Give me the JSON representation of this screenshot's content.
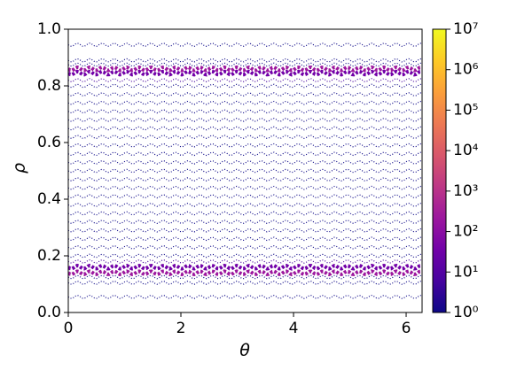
{
  "chart_data": {
    "type": "density",
    "xlabel": "θ",
    "ylabel": "ρ",
    "xlim": [
      0,
      6.283
    ],
    "ylim": [
      0,
      1
    ],
    "xticks": [
      0,
      2,
      4,
      6
    ],
    "yticks": [
      {
        "value": 0,
        "label": "0.0"
      },
      0.2,
      0.4,
      0.6,
      0.8,
      {
        "value": 1,
        "label": "1.0"
      }
    ],
    "rho": [
      0.055,
      0.105,
      0.125,
      0.14,
      0.16,
      0.18,
      0.2,
      0.23,
      0.26,
      0.29,
      0.32,
      0.35,
      0.38,
      0.41,
      0.44,
      0.47,
      0.5,
      0.53,
      0.56,
      0.59,
      0.62,
      0.65,
      0.68,
      0.71,
      0.74,
      0.77,
      0.8,
      0.82,
      0.845,
      0.86,
      0.875,
      0.89,
      0.945
    ],
    "counts": [
      1,
      1,
      2,
      100,
      30,
      3,
      2,
      2,
      2,
      2,
      2,
      2,
      2,
      2,
      2,
      2,
      1,
      2,
      2,
      2,
      2,
      2,
      2,
      2,
      2,
      2,
      2,
      3,
      30,
      100,
      2,
      1,
      1
    ],
    "colormap": "plasma",
    "color_scale": "log",
    "clim": [
      1,
      10000000
    ],
    "cticks": [
      {
        "value": 1,
        "label": "10⁰"
      },
      {
        "value": 10,
        "label": "10¹"
      },
      {
        "value": 100,
        "label": "10²"
      },
      {
        "value": 1000,
        "label": "10³"
      },
      {
        "value": 10000,
        "label": "10⁴"
      },
      {
        "value": 100000,
        "label": "10⁵"
      },
      {
        "value": 1000000,
        "label": "10⁶"
      },
      {
        "value": 10000000,
        "label": "10⁷"
      }
    ]
  }
}
